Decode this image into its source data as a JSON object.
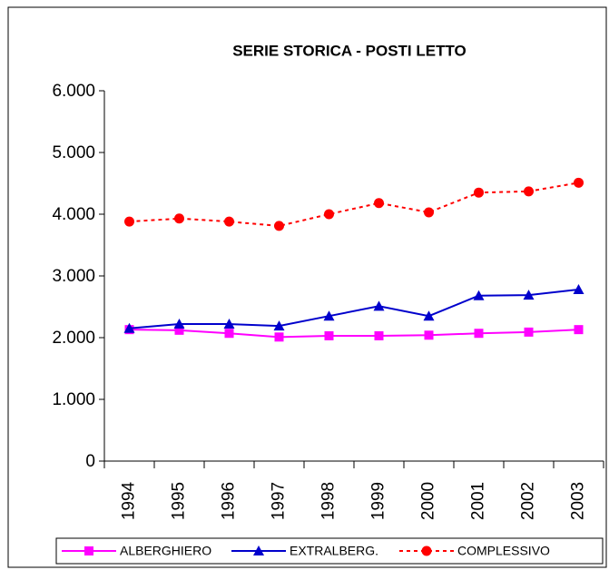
{
  "chart_data": {
    "type": "line",
    "title": "SERIE STORICA - POSTI LETTO",
    "categories": [
      "1994",
      "1995",
      "1996",
      "1997",
      "1998",
      "1999",
      "2000",
      "2001",
      "2002",
      "2003"
    ],
    "series": [
      {
        "name": "ALBERGHIERO",
        "color": "#ff00ff",
        "marker": "square",
        "dash": false,
        "values": [
          2130,
          2120,
          2070,
          2010,
          2030,
          2030,
          2040,
          2070,
          2090,
          2130
        ]
      },
      {
        "name": "EXTRALBERG.",
        "color": "#0000cc",
        "marker": "triangle",
        "dash": false,
        "values": [
          2150,
          2220,
          2220,
          2190,
          2350,
          2510,
          2350,
          2680,
          2690,
          2780
        ]
      },
      {
        "name": "COMPLESSIVO",
        "color": "#ff0000",
        "marker": "circle",
        "dash": true,
        "values": [
          3880,
          3930,
          3880,
          3810,
          4000,
          4180,
          4030,
          4350,
          4370,
          4510
        ]
      }
    ],
    "ylim": [
      0,
      6000
    ],
    "yticks": [
      0,
      {
        "value": 1000,
        "label": "1.000"
      },
      {
        "value": 2000,
        "label": "2.000"
      },
      {
        "value": 3000,
        "label": "3.000"
      },
      {
        "value": 4000,
        "label": "4.000"
      },
      {
        "value": 5000,
        "label": "5.000"
      },
      {
        "value": 6000,
        "label": "6.000"
      }
    ],
    "grid": false,
    "legend": "bottom"
  }
}
